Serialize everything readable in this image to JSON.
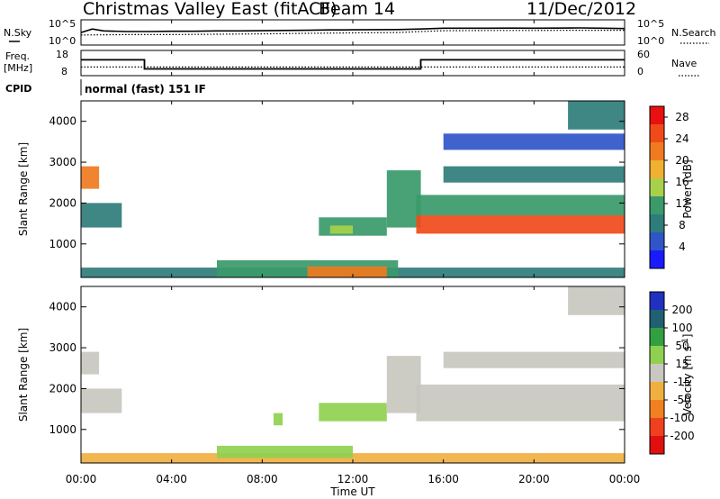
{
  "header": {
    "title": "Christmas Valley East (fitACF)",
    "beam": "Beam 14",
    "date": "11/Dec/2012"
  },
  "noise_panel": {
    "left_label": "N.Sky",
    "right_label": "N.Search",
    "left_ticks": [
      "10^5",
      "10^0"
    ],
    "right_ticks": [
      "10^5",
      "10^0"
    ]
  },
  "freq_panel": {
    "left_label_1": "Freq.",
    "left_label_2": "[MHz]",
    "right_label": "Nave",
    "left_ticks": [
      "18",
      "8"
    ],
    "right_ticks": [
      "60",
      "0"
    ]
  },
  "cpid": {
    "label": "CPID",
    "value": "normal (fast) 151 IF"
  },
  "x_axis": {
    "label": "Time UT",
    "ticks": [
      "00:00",
      "04:00",
      "08:00",
      "12:00",
      "16:00",
      "20:00",
      "00:00"
    ]
  },
  "colors": {
    "power": [
      "#1a1aff",
      "#2f55c8",
      "#2e7d7a",
      "#3a9a6a",
      "#a8d04a",
      "#f0b030",
      "#f07a20",
      "#f04a1a",
      "#e81010"
    ],
    "velocity": [
      "#2030c0",
      "#206070",
      "#30a040",
      "#90d050",
      "#c8c8c0",
      "#f0b040",
      "#f08020",
      "#f04020",
      "#e01010"
    ]
  },
  "chart_data": [
    {
      "type": "line",
      "title": "",
      "xlabel": "",
      "ylabel": "N.Sky",
      "yscale": "log",
      "x_unit": "hour UT",
      "xlim": [
        0,
        24
      ],
      "series": [
        {
          "name": "N.Sky",
          "style": "solid",
          "x": [
            0,
            0.5,
            1,
            2,
            3,
            4,
            5,
            6,
            7,
            8,
            9,
            10,
            11,
            12,
            13,
            14,
            15,
            16,
            17,
            18,
            19,
            20,
            21,
            22,
            23,
            24
          ],
          "y": [
            300,
            2000,
            700,
            500,
            500,
            600,
            600,
            700,
            700,
            800,
            900,
            1000,
            1200,
            1300,
            1400,
            1500,
            2000,
            3000,
            3000,
            3000,
            3200,
            3000,
            3200,
            3500,
            3000,
            2500
          ]
        },
        {
          "name": "N.Search",
          "style": "dotted",
          "x": [
            0,
            2,
            4,
            6,
            8,
            10,
            12,
            14,
            15,
            16,
            18,
            20,
            22,
            24
          ],
          "y": [
            80,
            100,
            100,
            120,
            150,
            200,
            250,
            300,
            500,
            800,
            900,
            900,
            1000,
            1000
          ]
        }
      ]
    },
    {
      "type": "line",
      "title": "",
      "xlabel": "",
      "ylabel": "Freq. [MHz]",
      "x_unit": "hour UT",
      "xlim": [
        0,
        24
      ],
      "ylim": [
        8,
        18
      ],
      "series": [
        {
          "name": "Freq.",
          "style": "solid",
          "x": [
            0,
            2.8,
            2.8,
            15.0,
            15.0,
            24
          ],
          "y": [
            14.5,
            14.5,
            10.3,
            10.3,
            14.5,
            14.5
          ]
        },
        {
          "name": "Nave",
          "style": "dotted",
          "axis": "right",
          "ylim": [
            0,
            60
          ],
          "x": [
            0,
            24
          ],
          "y": [
            19,
            19
          ]
        }
      ]
    },
    {
      "type": "heatmap",
      "title": "",
      "xlabel": "",
      "ylabel": "Slant Range [km]",
      "x_unit": "hour UT",
      "xlim": [
        0,
        24
      ],
      "ylim": [
        180,
        4500
      ],
      "yticks": [
        1000,
        2000,
        3000,
        4000
      ],
      "colorbar": {
        "label": "Power [dB]",
        "ticks": [
          4,
          8,
          12,
          16,
          20,
          24,
          28
        ],
        "range": [
          0,
          30
        ]
      },
      "regions": [
        {
          "x": [
            0.0,
            24.0
          ],
          "y": [
            180,
            420
          ],
          "value": 9
        },
        {
          "x": [
            6.0,
            14.0
          ],
          "y": [
            180,
            600
          ],
          "value": 13
        },
        {
          "x": [
            10.0,
            13.5
          ],
          "y": [
            180,
            450
          ],
          "value": 20
        },
        {
          "x": [
            0.0,
            0.8
          ],
          "y": [
            2350,
            2900
          ],
          "value": 20
        },
        {
          "x": [
            0.0,
            1.8
          ],
          "y": [
            1400,
            2000
          ],
          "value": 8
        },
        {
          "x": [
            10.5,
            13.5
          ],
          "y": [
            1200,
            1650
          ],
          "value": 10
        },
        {
          "x": [
            11.0,
            12.0
          ],
          "y": [
            1250,
            1450
          ],
          "value": 16
        },
        {
          "x": [
            13.5,
            15.0
          ],
          "y": [
            1400,
            2800
          ],
          "value": 10
        },
        {
          "x": [
            14.8,
            24.0
          ],
          "y": [
            1250,
            1700
          ],
          "value": 26
        },
        {
          "x": [
            14.8,
            24.0
          ],
          "y": [
            1700,
            2200
          ],
          "value": 12
        },
        {
          "x": [
            16.0,
            24.0
          ],
          "y": [
            2500,
            2900
          ],
          "value": 9
        },
        {
          "x": [
            16.0,
            24.0
          ],
          "y": [
            3300,
            3700
          ],
          "value": 6
        },
        {
          "x": [
            21.5,
            24.0
          ],
          "y": [
            3800,
            4500
          ],
          "value": 7
        }
      ]
    },
    {
      "type": "heatmap",
      "title": "",
      "xlabel": "Time UT",
      "ylabel": "Slant Range [km]",
      "x_unit": "hour UT",
      "xlim": [
        0,
        24
      ],
      "ylim": [
        180,
        4500
      ],
      "yticks": [
        1000,
        2000,
        3000,
        4000
      ],
      "colorbar": {
        "label": "Velocity [m s^-1]",
        "ticks": [
          200,
          100,
          50,
          15,
          -15,
          -50,
          -100,
          -200
        ],
        "range": [
          -250,
          250
        ]
      },
      "regions": [
        {
          "x": [
            0.0,
            24.0
          ],
          "y": [
            180,
            420
          ],
          "value": -60
        },
        {
          "x": [
            6.0,
            12.0
          ],
          "y": [
            300,
            600
          ],
          "value": 40
        },
        {
          "x": [
            0.0,
            0.8
          ],
          "y": [
            2350,
            2900
          ],
          "value": 0
        },
        {
          "x": [
            0.0,
            1.8
          ],
          "y": [
            1400,
            2000
          ],
          "value": -20
        },
        {
          "x": [
            8.5,
            8.9
          ],
          "y": [
            1100,
            1400
          ],
          "value": 30
        },
        {
          "x": [
            10.5,
            13.5
          ],
          "y": [
            1200,
            1650
          ],
          "value": 35
        },
        {
          "x": [
            13.5,
            15.0
          ],
          "y": [
            1400,
            2800
          ],
          "value": 25
        },
        {
          "x": [
            14.8,
            24.0
          ],
          "y": [
            1200,
            2100
          ],
          "value": 0
        },
        {
          "x": [
            16.0,
            24.0
          ],
          "y": [
            2500,
            2900
          ],
          "value": 0
        },
        {
          "x": [
            21.5,
            24.0
          ],
          "y": [
            3800,
            4500
          ],
          "value": -10
        }
      ]
    }
  ]
}
